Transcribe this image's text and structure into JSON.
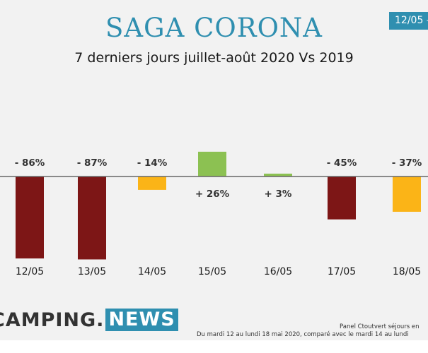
{
  "header": {
    "date_badge": "12/05 –",
    "title": "SAGA CORONA",
    "subtitle": "7 derniers jours juillet-août 2020 Vs 2019"
  },
  "colors": {
    "accent": "#2f8fb0",
    "strong_decline": "#7d1616",
    "moderate_decline": "#fbb417",
    "increase": "#8cc152",
    "axis": "#666666"
  },
  "chart_data": {
    "type": "bar",
    "title": "",
    "xlabel": "",
    "ylabel": "",
    "grid": false,
    "legend": "none",
    "categories": [
      "12/05",
      "13/05",
      "14/05",
      "15/05",
      "16/05",
      "17/05",
      "18/05"
    ],
    "values": [
      -86,
      -87,
      -14,
      26,
      3,
      -45,
      -37
    ],
    "data_labels": [
      "- 86%",
      "- 87%",
      "- 14%",
      "+ 26%",
      "+ 3%",
      "- 45%",
      "- 37%"
    ],
    "bar_colors": [
      "#7d1616",
      "#7d1616",
      "#fbb417",
      "#8cc152",
      "#8cc152",
      "#7d1616",
      "#fbb417"
    ],
    "ylim": [
      -90,
      60
    ]
  },
  "footer": {
    "logo_left": "CAMPING.",
    "logo_right": "NEWS",
    "note_line1": "Panel Ctoutvert séjours en",
    "note_line2": "Du mardi 12 au lundi 18 mai 2020, comparé avec le mardi 14 au lundi"
  }
}
